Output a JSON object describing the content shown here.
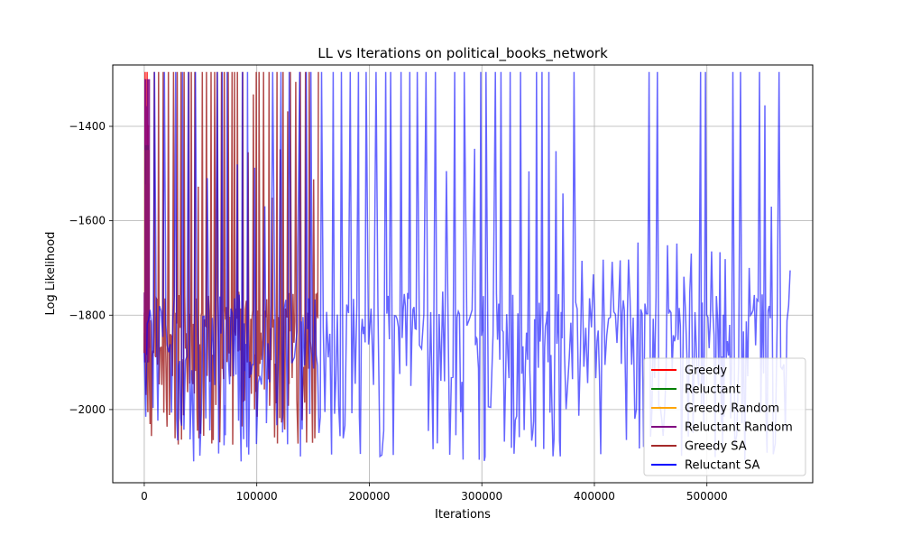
{
  "chart_data": {
    "type": "line",
    "title": "LL vs Iterations on political_books_network",
    "xlabel": "Iterations",
    "ylabel": "Log Likelihood",
    "xlim": [
      -28000,
      594000
    ],
    "ylim": [
      -2155,
      -1270
    ],
    "xticks": [
      0,
      100000,
      200000,
      300000,
      400000,
      500000
    ],
    "xtick_labels": [
      "0",
      "100000",
      "200000",
      "300000",
      "400000",
      "500000"
    ],
    "yticks": [
      -1400,
      -1600,
      -1800,
      -2000
    ],
    "ytick_labels": [
      "−1400",
      "−1600",
      "−1800",
      "−2000"
    ],
    "grid": true,
    "legend_position": "lower-right",
    "series": [
      {
        "name": "Greedy",
        "color": "#ff0000",
        "x_max": 3000,
        "y_min": -1900,
        "y_max": -1285,
        "peak_spacing": 600
      },
      {
        "name": "Reluctant",
        "color": "#008000",
        "x_max": 3500,
        "y_min": -1900,
        "y_max": -1440,
        "peak_spacing": 800
      },
      {
        "name": "Greedy Random",
        "color": "#ffa500",
        "x_max": 4000,
        "y_min": -1900,
        "y_max": -1450,
        "peak_spacing": 900
      },
      {
        "name": "Reluctant Random",
        "color": "#800080",
        "x_max": 4500,
        "y_min": -1900,
        "y_max": -1300,
        "peak_spacing": 900
      },
      {
        "name": "Greedy SA",
        "color": "#a52a2a",
        "x_max": 152000,
        "y_min": -2075,
        "y_max": -1285,
        "peak_spacing": 4000
      },
      {
        "name": "Reluctant SA",
        "color": "#0000ff",
        "x_max": 566000,
        "y_min": -2110,
        "y_max": -1285,
        "peak_spacing": 8000
      }
    ]
  }
}
